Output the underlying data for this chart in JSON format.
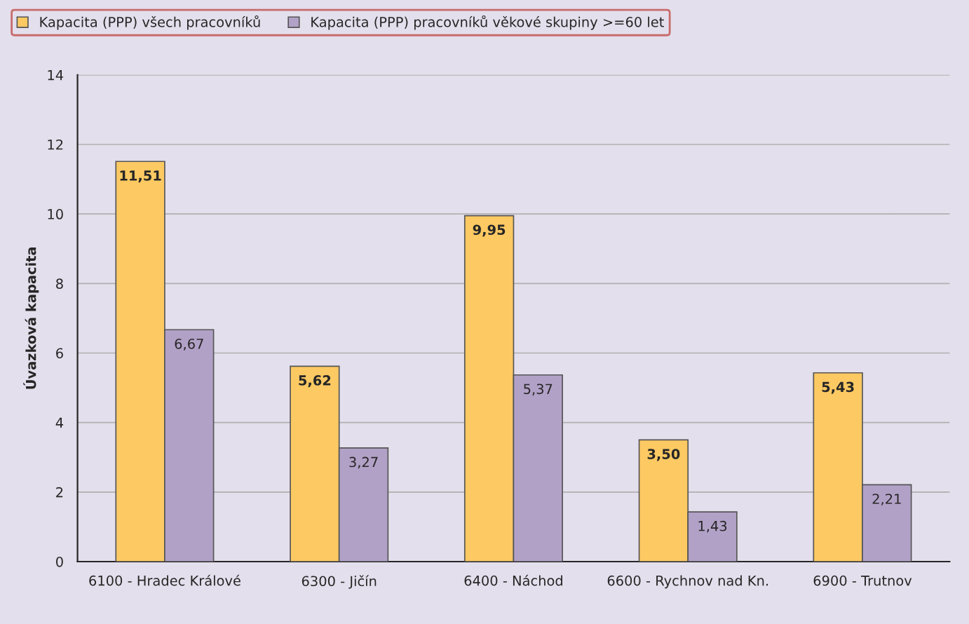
{
  "chart_data": {
    "type": "bar",
    "ylabel": "Úvazková kapacita",
    "categories": [
      "6100 - Hradec Králové",
      "6300 - Jičín",
      "6400 - Náchod",
      "6600 - Rychnov nad Kn.",
      "6900 - Trutnov"
    ],
    "series": [
      {
        "name": "Kapacita (PPP) všech pracovníků",
        "color": "#fcc963",
        "values": [
          11.51,
          5.62,
          9.95,
          3.5,
          5.43
        ],
        "value_labels": [
          "11,51",
          "5,62",
          "9,95",
          "3,50",
          "5,43"
        ]
      },
      {
        "name": "Kapacita (PPP) pracovníků věkové skupiny >=60 let",
        "color": "#b2a1c7",
        "values": [
          6.67,
          3.27,
          5.37,
          1.43,
          2.21
        ],
        "value_labels": [
          "6,67",
          "3,27",
          "5,37",
          "1,43",
          "2,21"
        ]
      }
    ],
    "ylim": [
      0,
      14
    ],
    "yticks": [
      0,
      2,
      4,
      6,
      8,
      10,
      12,
      14
    ],
    "grid": "y",
    "legend": "top left"
  }
}
